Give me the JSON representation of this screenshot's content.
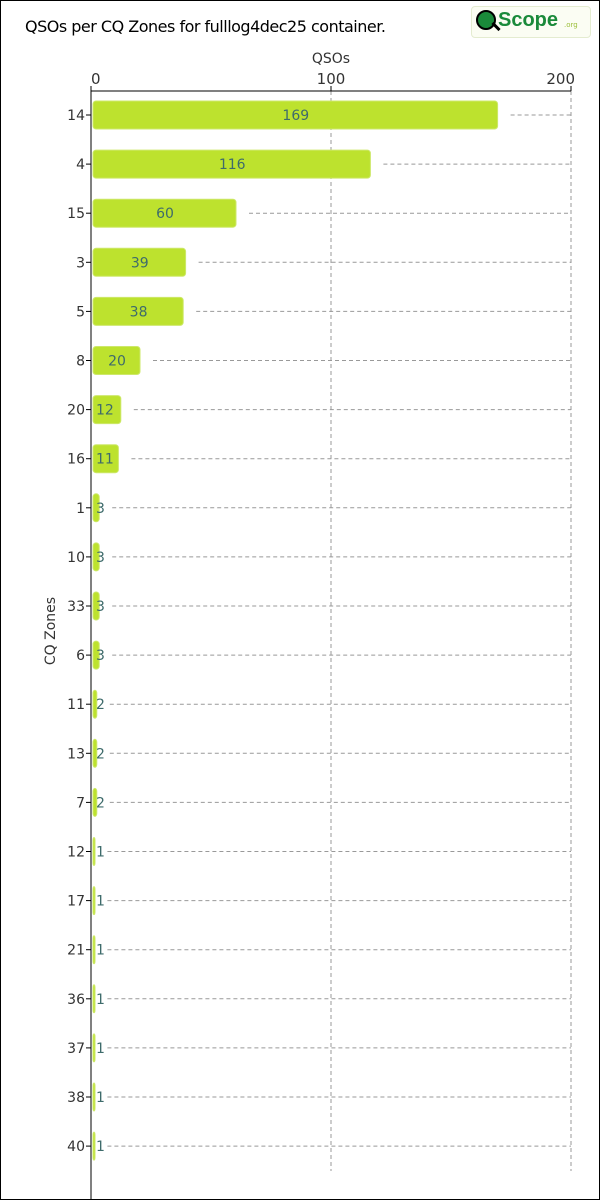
{
  "chart_data": {
    "type": "bar",
    "orientation": "horizontal",
    "title": "QSOs per CQ Zones for fulllog4dec25 container.",
    "xlabel": "QSOs",
    "ylabel": "CQ Zones",
    "xlim": [
      0,
      200
    ],
    "xticks": [
      0,
      100,
      200
    ],
    "x_axis_position": "top",
    "grid": true,
    "bar_color": "#bde22e",
    "label_color": "#3e6b6b",
    "categories": [
      "14",
      "4",
      "15",
      "3",
      "5",
      "8",
      "20",
      "16",
      "1",
      "10",
      "33",
      "6",
      "11",
      "13",
      "7",
      "12",
      "17",
      "21",
      "36",
      "37",
      "38",
      "40"
    ],
    "values": [
      169,
      116,
      60,
      39,
      38,
      20,
      12,
      11,
      3,
      3,
      3,
      3,
      2,
      2,
      2,
      1,
      1,
      1,
      1,
      1,
      1,
      1
    ]
  },
  "logo": {
    "text": "QScope.org"
  }
}
